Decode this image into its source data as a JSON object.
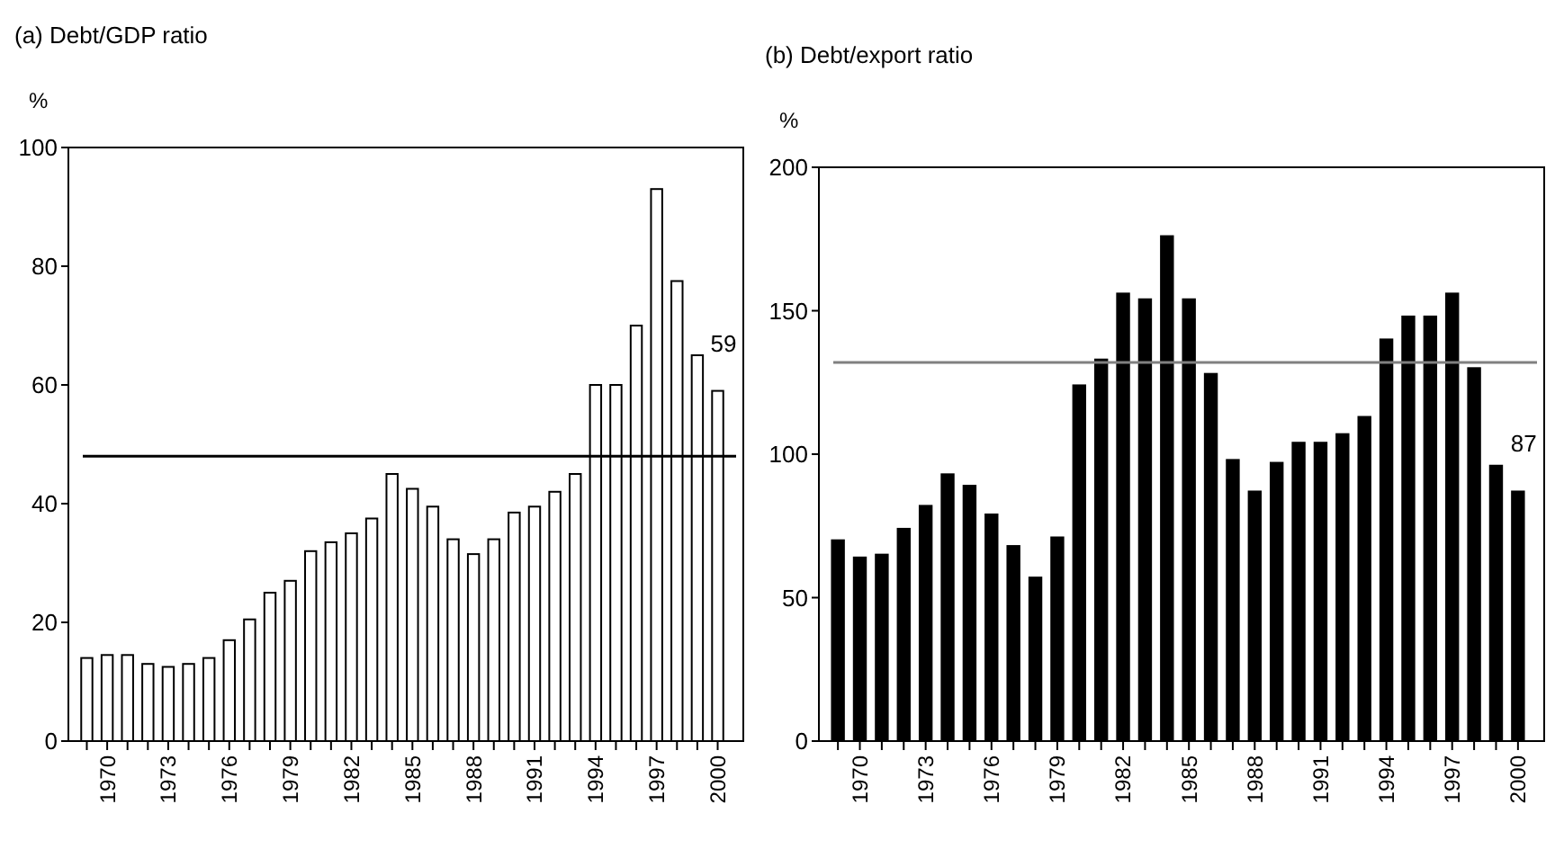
{
  "chart_data": [
    {
      "type": "bar",
      "title": "(a) Debt/GDP ratio",
      "ylabel": "%",
      "categories": [
        null,
        "1970",
        null,
        null,
        "1973",
        null,
        null,
        "1976",
        null,
        null,
        "1979",
        null,
        null,
        "1982",
        null,
        null,
        "1985",
        null,
        null,
        "1988",
        null,
        null,
        "1991",
        null,
        null,
        "1994",
        null,
        null,
        "1997",
        null,
        null,
        "2000"
      ],
      "values": [
        14,
        14.5,
        14.5,
        13,
        12.5,
        13,
        14,
        17,
        20.5,
        25,
        27,
        32,
        33.5,
        35,
        37.5,
        45,
        42.5,
        39.5,
        34,
        31.5,
        34,
        38.5,
        39.5,
        42,
        45,
        60,
        60,
        70,
        93,
        77.5,
        65,
        59
      ],
      "color": "#ffffff",
      "ylim": [
        0,
        100
      ],
      "yticks": [
        0,
        20,
        40,
        60,
        80,
        100
      ],
      "ref_lines": [
        {
          "axis": "y",
          "value": 48,
          "color": "#000000"
        }
      ],
      "annotations": [
        {
          "text": "59",
          "x": "2000",
          "y": 59
        }
      ]
    },
    {
      "type": "bar",
      "title": "(b) Debt/export ratio",
      "ylabel": "%",
      "categories": [
        null,
        "1970",
        null,
        null,
        "1973",
        null,
        null,
        "1976",
        null,
        null,
        "1979",
        null,
        null,
        "1982",
        null,
        null,
        "1985",
        null,
        null,
        "1988",
        null,
        null,
        "1991",
        null,
        null,
        "1994",
        null,
        null,
        "1997",
        null,
        null,
        "2000"
      ],
      "values": [
        70,
        64,
        65,
        74,
        82,
        93,
        89,
        79,
        68,
        57,
        71,
        124,
        133,
        156,
        154,
        176,
        154,
        128,
        98,
        87,
        97,
        104,
        104,
        107,
        113,
        140,
        148,
        148,
        156,
        130,
        96,
        87
      ],
      "color": "#000000",
      "ylim": [
        0,
        200
      ],
      "yticks": [
        0,
        50,
        100,
        150,
        200
      ],
      "ref_lines": [
        {
          "axis": "y",
          "value": 132,
          "color": "#808080"
        }
      ],
      "annotations": [
        {
          "text": "87",
          "x": "2000",
          "y": 87
        }
      ]
    }
  ]
}
